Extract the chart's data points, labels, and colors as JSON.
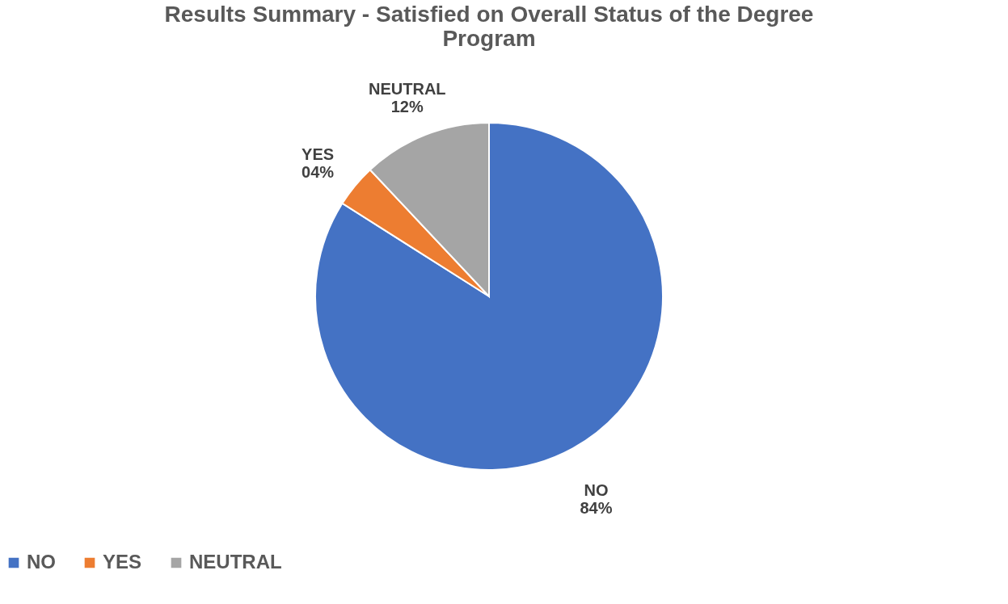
{
  "chart_data": {
    "type": "pie",
    "title": "Results Summary - Satisfied on Overall Status of the Degree Program",
    "categories": [
      "NO",
      "YES",
      "NEUTRAL"
    ],
    "values": [
      84,
      4,
      12
    ],
    "colors": [
      "#4472c4",
      "#ed7d31",
      "#a5a5a5"
    ],
    "value_labels": [
      "84%",
      "04%",
      "12%"
    ],
    "legend": "bottom"
  }
}
